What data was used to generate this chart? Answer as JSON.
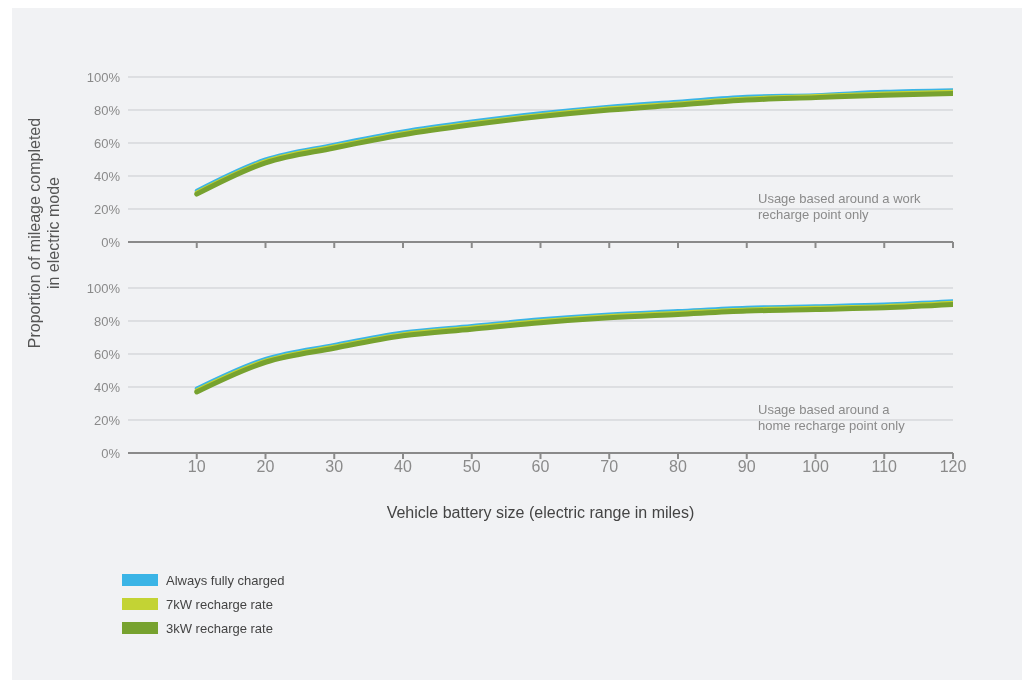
{
  "chart_data": [
    {
      "type": "line",
      "ylabel": "Proportion of mileage completed in electric mode",
      "x": [
        10,
        20,
        30,
        40,
        50,
        60,
        70,
        80,
        90,
        100,
        110,
        120
      ],
      "xlim": [
        0,
        120
      ],
      "xticks": [
        10,
        20,
        30,
        40,
        50,
        60,
        70,
        80,
        90,
        100,
        110,
        120
      ],
      "ylim": [
        0,
        100
      ],
      "yticks": [
        {
          "value": 0,
          "label": "0%"
        },
        {
          "value": 20,
          "label": "20%"
        },
        {
          "value": 40,
          "label": "40%"
        },
        {
          "value": 60,
          "label": "60%"
        },
        {
          "value": 80,
          "label": "80%"
        },
        {
          "value": 100,
          "label": "100%"
        }
      ],
      "grid": "y",
      "tick_labels": "y",
      "marker": "none",
      "line_style": "solid",
      "annotations": [
        "Usage based around a work recharge point only"
      ],
      "series": [
        {
          "color": "#3ab4e6",
          "values": [
            31,
            50,
            59,
            67,
            73,
            78,
            82,
            85,
            88,
            89,
            91,
            92
          ]
        },
        {
          "color": "#c3d334",
          "values": [
            30,
            49,
            58,
            66,
            72,
            77,
            81,
            84,
            87,
            88.5,
            90,
            91
          ]
        },
        {
          "color": "#77a22f",
          "values": [
            29,
            48,
            57,
            65,
            71,
            76,
            80,
            83,
            86,
            87.5,
            89,
            90
          ]
        }
      ]
    },
    {
      "type": "line",
      "xlabel": "Vehicle battery size (electric range in miles)",
      "x": [
        10,
        20,
        30,
        40,
        50,
        60,
        70,
        80,
        90,
        100,
        110,
        120
      ],
      "xlim": [
        0,
        120
      ],
      "xticks": [
        10,
        20,
        30,
        40,
        50,
        60,
        70,
        80,
        90,
        100,
        110,
        120
      ],
      "ylim": [
        0,
        100
      ],
      "yticks": [
        {
          "value": 0,
          "label": "0%"
        },
        {
          "value": 20,
          "label": "20%"
        },
        {
          "value": 40,
          "label": "40%"
        },
        {
          "value": 60,
          "label": "60%"
        },
        {
          "value": 80,
          "label": "80%"
        },
        {
          "value": 100,
          "label": "100%"
        }
      ],
      "grid": "y",
      "legend": "bottom left",
      "marker": "none",
      "line_style": "solid",
      "annotations": [
        "Usage based around a home recharge point only"
      ],
      "series": [
        {
          "name": "Always fully charged",
          "color": "#3ab4e6",
          "values": [
            39,
            57,
            65.5,
            73,
            77,
            81,
            84,
            86,
            88,
            89,
            90,
            92
          ]
        },
        {
          "name": "7kW recharge rate",
          "color": "#c3d334",
          "values": [
            38,
            56,
            64.5,
            72,
            76,
            80,
            83,
            85,
            87,
            88,
            89,
            91
          ]
        },
        {
          "name": "3kW recharge rate",
          "color": "#77a22f",
          "values": [
            37,
            55,
            63.5,
            71,
            75,
            79,
            82,
            84,
            86,
            87,
            88,
            90
          ]
        }
      ]
    }
  ]
}
